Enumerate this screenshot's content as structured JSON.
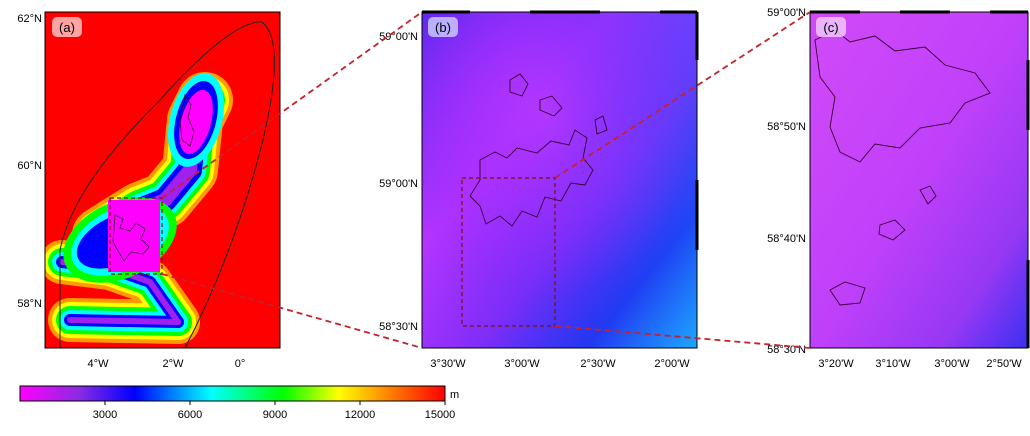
{
  "panels": [
    {
      "label": "(a)",
      "lat_labels": [
        "62°N",
        "60°N",
        "58°N"
      ],
      "lon_labels": [
        "4°W",
        "2°W",
        "0°"
      ]
    },
    {
      "label": "(b)",
      "lat_labels": [
        "59°00'N",
        "59°00'N",
        "58°30'N"
      ],
      "lon_labels": [
        "3°30'W",
        "3°00'W",
        "2°30'W",
        "2°00'W"
      ]
    },
    {
      "label": "(c)",
      "lat_labels": [
        "59°00'N",
        "58°50'N",
        "58°40'N",
        "58°30'N"
      ],
      "lon_labels": [
        "3°20'W",
        "3°10'W",
        "3°00'W",
        "2°50'W"
      ]
    }
  ],
  "colorbar": {
    "unit": "m",
    "ticks": [
      "3000",
      "6000",
      "9000",
      "12000",
      "15000"
    ],
    "colors": [
      "#ff00ff",
      "#8a2be2",
      "#0000ff",
      "#00ffff",
      "#00ff00",
      "#ffff00",
      "#ff8000",
      "#ff0000"
    ]
  }
}
